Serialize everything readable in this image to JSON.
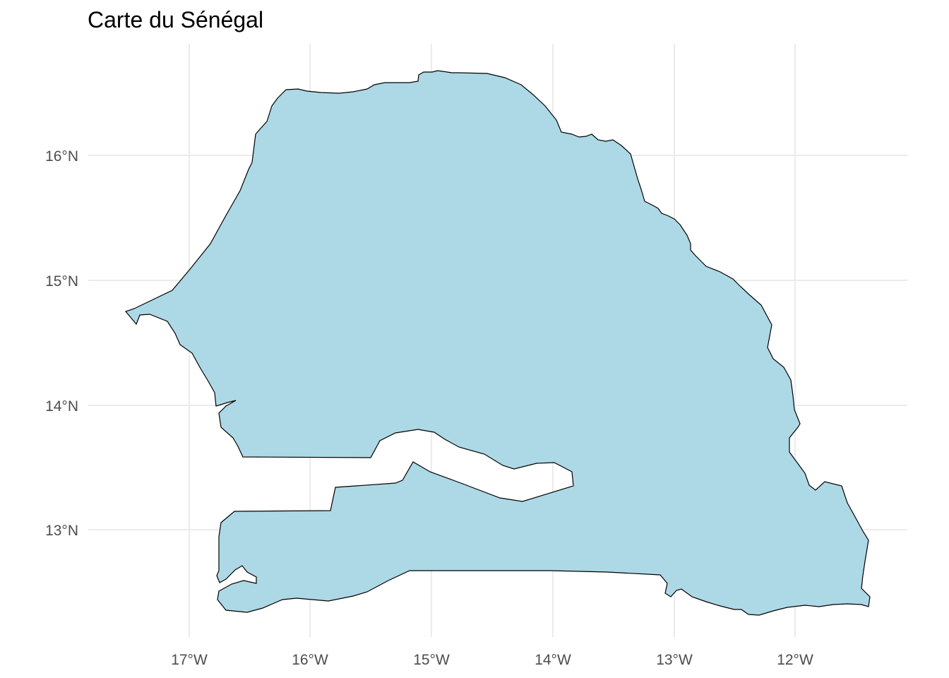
{
  "title": "Carte du Sénégal",
  "axes": {
    "x_ticks": [
      "17°W",
      "16°W",
      "15°W",
      "14°W",
      "13°W",
      "12°W"
    ],
    "y_ticks": [
      "16°N",
      "15°N",
      "14°N",
      "13°N"
    ]
  },
  "regions": [
    {
      "name": "Sénégal",
      "fill": "#add8e6"
    }
  ],
  "colors": {
    "land_fill": "#add8e6",
    "border": "#000000",
    "grid": "#ebebeb",
    "tick_text": "#4d4d4d"
  }
}
